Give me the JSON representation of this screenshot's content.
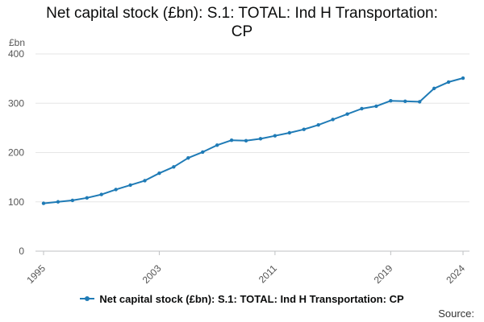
{
  "chart_data": {
    "type": "line",
    "title_lines": [
      "Net capital stock (£bn): S.1: TOTAL: Ind H Transportation:",
      "CP"
    ],
    "ylabel": "£bn",
    "xlabel": "",
    "ylim": [
      0,
      400
    ],
    "y_ticks": [
      0,
      100,
      200,
      300,
      400
    ],
    "x_ticks": [
      1995,
      2003,
      2011,
      2019,
      2024
    ],
    "grid": "horizontal",
    "legend": "bottom-center",
    "series": [
      {
        "name": "Net capital stock (£bn): S.1: TOTAL: Ind H Transportation: CP",
        "color": "#1f7bb6",
        "x": [
          1995,
          1996,
          1997,
          1998,
          1999,
          2000,
          2001,
          2002,
          2003,
          2004,
          2005,
          2006,
          2007,
          2008,
          2009,
          2010,
          2011,
          2012,
          2013,
          2014,
          2015,
          2016,
          2017,
          2018,
          2019,
          2020,
          2021,
          2022,
          2023,
          2024
        ],
        "values": [
          97,
          100,
          103,
          108,
          115,
          125,
          134,
          143,
          158,
          171,
          189,
          201,
          215,
          225,
          224,
          228,
          234,
          240,
          247,
          256,
          267,
          278,
          289,
          294,
          305,
          304,
          303,
          330,
          343,
          351
        ]
      }
    ]
  },
  "source_label": "Source:"
}
